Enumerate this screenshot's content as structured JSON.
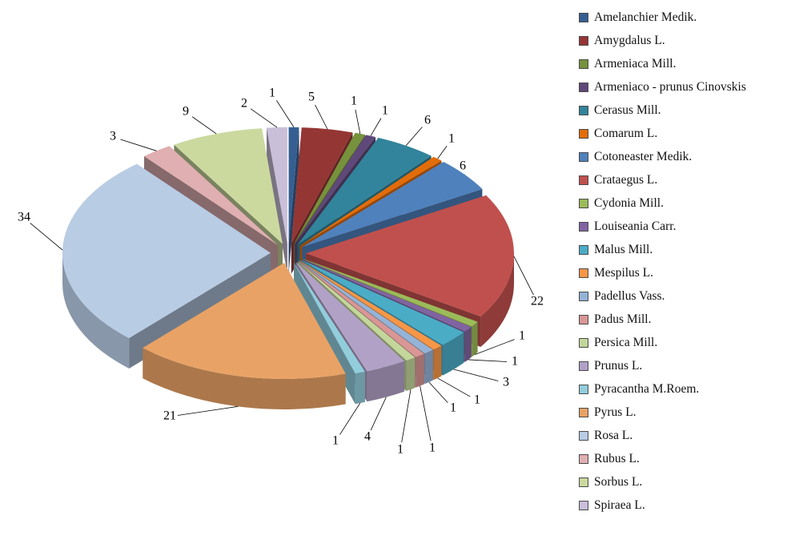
{
  "page": {
    "background": "#ffffff"
  },
  "chart_data": {
    "type": "pie",
    "style": "3d-exploded-pie",
    "title": "",
    "legend_position": "right",
    "start_angle_deg": -90,
    "direction": "clockwise",
    "total": 126,
    "categories": [
      "Amelanchier Medik.",
      "Amygdalus L.",
      "Armeniaca Mill.",
      "Armeniaco - prunus Cinovskis",
      "Cerasus Mill.",
      "Comarum L.",
      "Cotoneaster Medik.",
      "Crataegus L.",
      "Cydonia Mill.",
      "Louiseania Carr.",
      "Malus Mill.",
      "Mespilus L.",
      "Padellus Vass.",
      "Padus Mill.",
      "Persica Mill.",
      "Prunus L.",
      "Pyracantha M.Roem.",
      "Pyrus L.",
      "Rosa L.",
      "Rubus L.",
      "Sorbus L.",
      "Spiraea L."
    ],
    "values": [
      1,
      5,
      1,
      1,
      6,
      1,
      6,
      22,
      1,
      1,
      3,
      1,
      1,
      1,
      1,
      4,
      1,
      21,
      34,
      3,
      9,
      2
    ],
    "colors": [
      "#365F91",
      "#943634",
      "#76923C",
      "#5F497A",
      "#31849B",
      "#E36C0A",
      "#4F81BD",
      "#C0504D",
      "#9BBB59",
      "#8064A2",
      "#4BACC6",
      "#F79646",
      "#95B3D7",
      "#D99694",
      "#C3D69B",
      "#B2A1C7",
      "#92CDDC",
      "#E9A265",
      "#B8CCE4",
      "#E0AFB2",
      "#CBD99F",
      "#C9BFD9"
    ]
  }
}
